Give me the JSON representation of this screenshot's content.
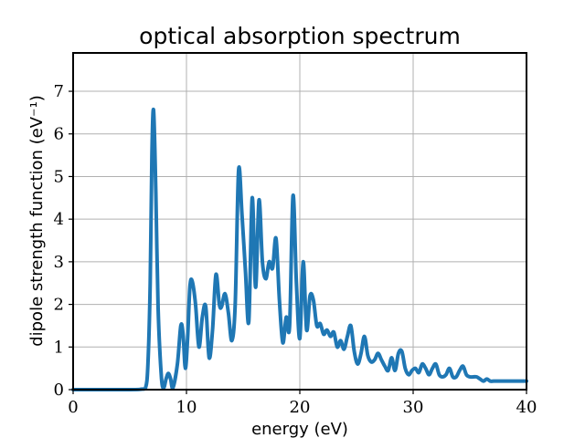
{
  "chart_data": {
    "type": "line",
    "title": "optical absorption spectrum",
    "xlabel": "energy (eV)",
    "ylabel": "dipole strength function (eV⁻¹)",
    "xlim": [
      0,
      40
    ],
    "ylim": [
      0,
      7.9
    ],
    "xticks": [
      0,
      10,
      20,
      30,
      40
    ],
    "yticks": [
      0,
      1,
      2,
      3,
      4,
      5,
      6,
      7
    ],
    "grid": true,
    "series_color": "#1f77b4",
    "series": [
      {
        "x": [
          0,
          5.0,
          6.0,
          6.4,
          6.6,
          6.8,
          6.95,
          7.1,
          7.3,
          7.5,
          7.8,
          8.0,
          8.2,
          8.4,
          8.6,
          8.8,
          9.2,
          9.5,
          9.7,
          9.9,
          10.1,
          10.3,
          10.5,
          10.8,
          11.1,
          11.4,
          11.7,
          12.0,
          12.3,
          12.6,
          12.9,
          13.1,
          13.4,
          13.7,
          14.0,
          14.3,
          14.6,
          14.9,
          15.2,
          15.5,
          15.8,
          16.1,
          16.4,
          16.7,
          17.0,
          17.3,
          17.6,
          17.9,
          18.2,
          18.5,
          18.8,
          19.1,
          19.4,
          19.7,
          20.0,
          20.3,
          20.6,
          20.9,
          21.2,
          21.5,
          21.8,
          22.1,
          22.4,
          22.7,
          23.0,
          23.3,
          23.6,
          23.9,
          24.2,
          24.5,
          24.8,
          25.1,
          25.4,
          25.7,
          26.0,
          26.3,
          26.6,
          26.9,
          27.2,
          27.5,
          27.8,
          28.1,
          28.4,
          28.7,
          29.0,
          29.3,
          29.6,
          29.9,
          30.2,
          30.5,
          30.8,
          31.1,
          31.4,
          31.7,
          32.0,
          32.3,
          32.6,
          32.9,
          33.2,
          33.5,
          33.8,
          34.1,
          34.4,
          34.7,
          35.0,
          35.3,
          35.6,
          35.9,
          36.2,
          36.5,
          36.8,
          37.1,
          37.4,
          37.7,
          38.0,
          38.3,
          38.6,
          38.9,
          39.2,
          39.5,
          39.8,
          40.0
        ],
        "y": [
          0,
          0,
          0.01,
          0.05,
          0.6,
          2.5,
          5.5,
          6.55,
          4.6,
          1.9,
          0.25,
          0.05,
          0.25,
          0.38,
          0.25,
          0.04,
          0.6,
          1.5,
          1.3,
          0.5,
          1.2,
          2.4,
          2.55,
          2.0,
          1.0,
          1.7,
          1.95,
          0.75,
          1.4,
          2.7,
          2.0,
          1.95,
          2.25,
          1.8,
          1.15,
          2.0,
          5.15,
          4.1,
          2.8,
          1.6,
          4.5,
          2.4,
          4.45,
          3.0,
          2.6,
          3.0,
          2.85,
          3.55,
          2.1,
          1.1,
          1.7,
          1.5,
          4.55,
          2.5,
          1.2,
          3.0,
          1.4,
          2.2,
          2.1,
          1.5,
          1.55,
          1.3,
          1.4,
          1.25,
          1.35,
          1.0,
          1.15,
          0.95,
          1.25,
          1.5,
          0.9,
          0.6,
          0.85,
          1.25,
          0.8,
          0.65,
          0.7,
          0.85,
          0.7,
          0.55,
          0.45,
          0.75,
          0.45,
          0.85,
          0.9,
          0.5,
          0.35,
          0.45,
          0.5,
          0.4,
          0.6,
          0.5,
          0.35,
          0.5,
          0.6,
          0.35,
          0.3,
          0.35,
          0.5,
          0.3,
          0.3,
          0.45,
          0.55,
          0.35,
          0.3,
          0.3,
          0.3,
          0.25,
          0.2,
          0.25,
          0.2,
          0.2,
          0.2,
          0.2,
          0.2,
          0.2,
          0.2,
          0.2,
          0.2,
          0.2,
          0.2,
          0.2
        ]
      }
    ]
  }
}
